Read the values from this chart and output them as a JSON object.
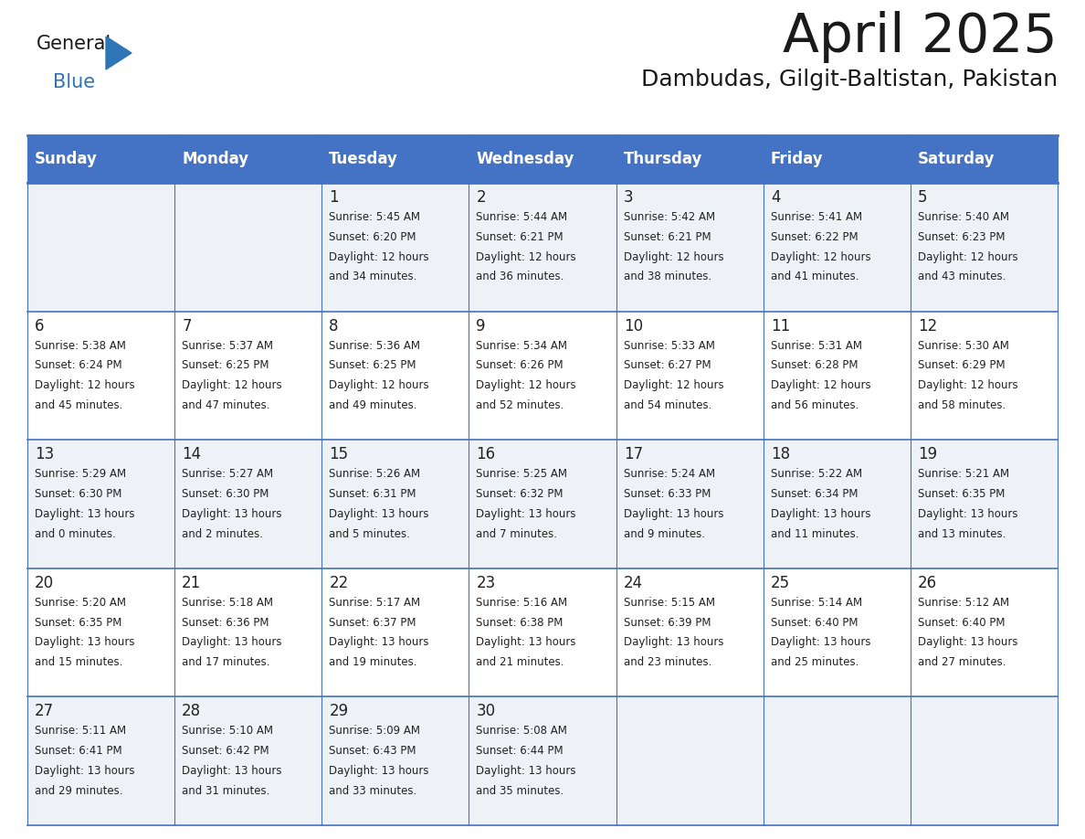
{
  "title": "April 2025",
  "subtitle": "Dambudas, Gilgit-Baltistan, Pakistan",
  "header_bg_color": "#4472C4",
  "header_text_color": "#FFFFFF",
  "day_names": [
    "Sunday",
    "Monday",
    "Tuesday",
    "Wednesday",
    "Thursday",
    "Friday",
    "Saturday"
  ],
  "title_color": "#1a1a1a",
  "subtitle_color": "#1a1a1a",
  "cell_text_color": "#222222",
  "cell_number_color": "#222222",
  "row0_bg": "#eef2f7",
  "row1_bg": "#ffffff",
  "grid_line_color": "#4472C4",
  "logo_general_color": "#1a1a1a",
  "logo_blue_color": "#2E75B6",
  "weeks": [
    [
      {
        "day": "",
        "lines": []
      },
      {
        "day": "",
        "lines": []
      },
      {
        "day": "1",
        "lines": [
          "Sunrise: 5:45 AM",
          "Sunset: 6:20 PM",
          "Daylight: 12 hours",
          "and 34 minutes."
        ]
      },
      {
        "day": "2",
        "lines": [
          "Sunrise: 5:44 AM",
          "Sunset: 6:21 PM",
          "Daylight: 12 hours",
          "and 36 minutes."
        ]
      },
      {
        "day": "3",
        "lines": [
          "Sunrise: 5:42 AM",
          "Sunset: 6:21 PM",
          "Daylight: 12 hours",
          "and 38 minutes."
        ]
      },
      {
        "day": "4",
        "lines": [
          "Sunrise: 5:41 AM",
          "Sunset: 6:22 PM",
          "Daylight: 12 hours",
          "and 41 minutes."
        ]
      },
      {
        "day": "5",
        "lines": [
          "Sunrise: 5:40 AM",
          "Sunset: 6:23 PM",
          "Daylight: 12 hours",
          "and 43 minutes."
        ]
      }
    ],
    [
      {
        "day": "6",
        "lines": [
          "Sunrise: 5:38 AM",
          "Sunset: 6:24 PM",
          "Daylight: 12 hours",
          "and 45 minutes."
        ]
      },
      {
        "day": "7",
        "lines": [
          "Sunrise: 5:37 AM",
          "Sunset: 6:25 PM",
          "Daylight: 12 hours",
          "and 47 minutes."
        ]
      },
      {
        "day": "8",
        "lines": [
          "Sunrise: 5:36 AM",
          "Sunset: 6:25 PM",
          "Daylight: 12 hours",
          "and 49 minutes."
        ]
      },
      {
        "day": "9",
        "lines": [
          "Sunrise: 5:34 AM",
          "Sunset: 6:26 PM",
          "Daylight: 12 hours",
          "and 52 minutes."
        ]
      },
      {
        "day": "10",
        "lines": [
          "Sunrise: 5:33 AM",
          "Sunset: 6:27 PM",
          "Daylight: 12 hours",
          "and 54 minutes."
        ]
      },
      {
        "day": "11",
        "lines": [
          "Sunrise: 5:31 AM",
          "Sunset: 6:28 PM",
          "Daylight: 12 hours",
          "and 56 minutes."
        ]
      },
      {
        "day": "12",
        "lines": [
          "Sunrise: 5:30 AM",
          "Sunset: 6:29 PM",
          "Daylight: 12 hours",
          "and 58 minutes."
        ]
      }
    ],
    [
      {
        "day": "13",
        "lines": [
          "Sunrise: 5:29 AM",
          "Sunset: 6:30 PM",
          "Daylight: 13 hours",
          "and 0 minutes."
        ]
      },
      {
        "day": "14",
        "lines": [
          "Sunrise: 5:27 AM",
          "Sunset: 6:30 PM",
          "Daylight: 13 hours",
          "and 2 minutes."
        ]
      },
      {
        "day": "15",
        "lines": [
          "Sunrise: 5:26 AM",
          "Sunset: 6:31 PM",
          "Daylight: 13 hours",
          "and 5 minutes."
        ]
      },
      {
        "day": "16",
        "lines": [
          "Sunrise: 5:25 AM",
          "Sunset: 6:32 PM",
          "Daylight: 13 hours",
          "and 7 minutes."
        ]
      },
      {
        "day": "17",
        "lines": [
          "Sunrise: 5:24 AM",
          "Sunset: 6:33 PM",
          "Daylight: 13 hours",
          "and 9 minutes."
        ]
      },
      {
        "day": "18",
        "lines": [
          "Sunrise: 5:22 AM",
          "Sunset: 6:34 PM",
          "Daylight: 13 hours",
          "and 11 minutes."
        ]
      },
      {
        "day": "19",
        "lines": [
          "Sunrise: 5:21 AM",
          "Sunset: 6:35 PM",
          "Daylight: 13 hours",
          "and 13 minutes."
        ]
      }
    ],
    [
      {
        "day": "20",
        "lines": [
          "Sunrise: 5:20 AM",
          "Sunset: 6:35 PM",
          "Daylight: 13 hours",
          "and 15 minutes."
        ]
      },
      {
        "day": "21",
        "lines": [
          "Sunrise: 5:18 AM",
          "Sunset: 6:36 PM",
          "Daylight: 13 hours",
          "and 17 minutes."
        ]
      },
      {
        "day": "22",
        "lines": [
          "Sunrise: 5:17 AM",
          "Sunset: 6:37 PM",
          "Daylight: 13 hours",
          "and 19 minutes."
        ]
      },
      {
        "day": "23",
        "lines": [
          "Sunrise: 5:16 AM",
          "Sunset: 6:38 PM",
          "Daylight: 13 hours",
          "and 21 minutes."
        ]
      },
      {
        "day": "24",
        "lines": [
          "Sunrise: 5:15 AM",
          "Sunset: 6:39 PM",
          "Daylight: 13 hours",
          "and 23 minutes."
        ]
      },
      {
        "day": "25",
        "lines": [
          "Sunrise: 5:14 AM",
          "Sunset: 6:40 PM",
          "Daylight: 13 hours",
          "and 25 minutes."
        ]
      },
      {
        "day": "26",
        "lines": [
          "Sunrise: 5:12 AM",
          "Sunset: 6:40 PM",
          "Daylight: 13 hours",
          "and 27 minutes."
        ]
      }
    ],
    [
      {
        "day": "27",
        "lines": [
          "Sunrise: 5:11 AM",
          "Sunset: 6:41 PM",
          "Daylight: 13 hours",
          "and 29 minutes."
        ]
      },
      {
        "day": "28",
        "lines": [
          "Sunrise: 5:10 AM",
          "Sunset: 6:42 PM",
          "Daylight: 13 hours",
          "and 31 minutes."
        ]
      },
      {
        "day": "29",
        "lines": [
          "Sunrise: 5:09 AM",
          "Sunset: 6:43 PM",
          "Daylight: 13 hours",
          "and 33 minutes."
        ]
      },
      {
        "day": "30",
        "lines": [
          "Sunrise: 5:08 AM",
          "Sunset: 6:44 PM",
          "Daylight: 13 hours",
          "and 35 minutes."
        ]
      },
      {
        "day": "",
        "lines": []
      },
      {
        "day": "",
        "lines": []
      },
      {
        "day": "",
        "lines": []
      }
    ]
  ]
}
